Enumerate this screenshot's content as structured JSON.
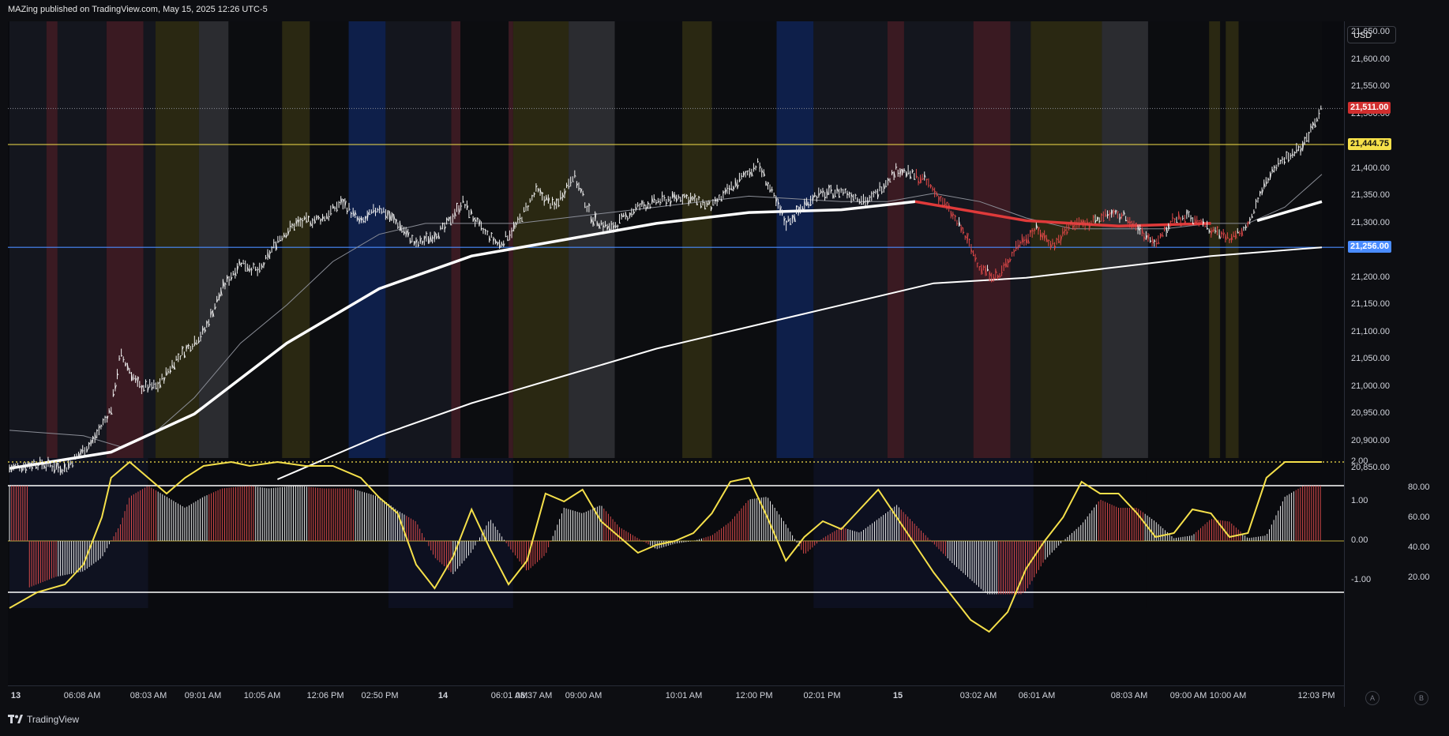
{
  "header": {
    "title": "MAZing published on TradingView.com, May 15, 2025 12:26 UTC-5"
  },
  "currency": "USD",
  "price_axis": {
    "ticks": [
      "21,650.00",
      "21,600.00",
      "21,550.00",
      "21,500.00",
      "21,400.00",
      "21,350.00",
      "21,300.00",
      "21,200.00",
      "21,150.00",
      "21,100.00",
      "21,050.00",
      "21,000.00",
      "20,950.00",
      "20,900.00",
      "20,850.00"
    ],
    "tick_values": [
      21650,
      21600,
      21550,
      21500,
      21400,
      21350,
      21300,
      21200,
      21150,
      21100,
      21050,
      21000,
      20950,
      20900,
      20850
    ],
    "last_price": "21,511.00",
    "yellow_line": "21,444.75",
    "blue_line": "21,256.00",
    "last_price_value": 21511,
    "yellow_line_value": 21444.75,
    "blue_line_value": 21256
  },
  "oscillator_axis": {
    "left_ticks": [
      "2.00",
      "1.00",
      "0.00",
      "-1.00"
    ],
    "left_values": [
      2,
      1,
      0,
      -1
    ],
    "right_ticks": [
      "80.00",
      "60.00",
      "40.00",
      "20.00"
    ],
    "right_values": [
      80,
      60,
      40,
      20
    ]
  },
  "time_axis": [
    "13",
    "06:08 AM",
    "08:03 AM",
    "09:01 AM",
    "10:05 AM",
    "12:06 PM",
    "02:50 PM",
    "14",
    "06:01 AM",
    "08:37 AM",
    "09:00 AM",
    "10:01 AM",
    "12:00 PM",
    "02:01 PM",
    "15",
    "03:02 AM",
    "06:01 AM",
    "08:03 AM",
    "09:00 AM",
    "10:00 AM",
    "12:03 PM"
  ],
  "footer": {
    "brand": "TradingView",
    "btn_a": "A",
    "btn_b": "B"
  },
  "colors": {
    "yellow": "#f5e04a",
    "blue": "#4a8cff",
    "red_tag": "#d12e2e",
    "ma_red": "#e03a3a",
    "session_red": "#3a1a22",
    "session_olive": "#2a2812",
    "session_grey": "#2b2c30",
    "session_blue": "#0e1f4a",
    "session_dark": "#14161e"
  },
  "chart_data": {
    "type": "line",
    "price_range": [
      20830,
      21700
    ],
    "price_series_anchor_points": [
      [
        0,
        20850
      ],
      [
        30,
        20860
      ],
      [
        60,
        20850
      ],
      [
        90,
        20900
      ],
      [
        110,
        20960
      ],
      [
        120,
        21060
      ],
      [
        140,
        21000
      ],
      [
        160,
        21000
      ],
      [
        180,
        21050
      ],
      [
        210,
        21100
      ],
      [
        230,
        21180
      ],
      [
        250,
        21230
      ],
      [
        270,
        21210
      ],
      [
        290,
        21270
      ],
      [
        310,
        21300
      ],
      [
        340,
        21310
      ],
      [
        360,
        21340
      ],
      [
        380,
        21300
      ],
      [
        400,
        21330
      ],
      [
        420,
        21300
      ],
      [
        440,
        21260
      ],
      [
        470,
        21290
      ],
      [
        490,
        21340
      ],
      [
        510,
        21290
      ],
      [
        530,
        21260
      ],
      [
        550,
        21300
      ],
      [
        570,
        21360
      ],
      [
        590,
        21330
      ],
      [
        610,
        21390
      ],
      [
        630,
        21310
      ],
      [
        650,
        21290
      ],
      [
        680,
        21330
      ],
      [
        700,
        21340
      ],
      [
        730,
        21350
      ],
      [
        760,
        21330
      ],
      [
        790,
        21380
      ],
      [
        810,
        21410
      ],
      [
        840,
        21300
      ],
      [
        870,
        21350
      ],
      [
        900,
        21360
      ],
      [
        930,
        21340
      ],
      [
        960,
        21400
      ],
      [
        990,
        21380
      ],
      [
        1010,
        21340
      ],
      [
        1030,
        21290
      ],
      [
        1050,
        21220
      ],
      [
        1070,
        21200
      ],
      [
        1090,
        21260
      ],
      [
        1110,
        21290
      ],
      [
        1130,
        21260
      ],
      [
        1150,
        21300
      ],
      [
        1170,
        21300
      ],
      [
        1190,
        21320
      ],
      [
        1210,
        21310
      ],
      [
        1240,
        21260
      ],
      [
        1260,
        21310
      ],
      [
        1280,
        21310
      ],
      [
        1300,
        21290
      ],
      [
        1320,
        21270
      ],
      [
        1340,
        21300
      ],
      [
        1360,
        21380
      ],
      [
        1380,
        21420
      ],
      [
        1400,
        21440
      ],
      [
        1420,
        21511
      ]
    ],
    "red_segment_range_x": [
      980,
      1340
    ],
    "ma_fast_points": [
      [
        0,
        20850
      ],
      [
        110,
        20880
      ],
      [
        200,
        20950
      ],
      [
        300,
        21080
      ],
      [
        400,
        21180
      ],
      [
        500,
        21240
      ],
      [
        600,
        21270
      ],
      [
        700,
        21300
      ],
      [
        800,
        21320
      ],
      [
        900,
        21325
      ],
      [
        980,
        21340
      ],
      [
        1100,
        21305
      ],
      [
        1200,
        21295
      ],
      [
        1300,
        21300
      ],
      [
        1350,
        21305
      ],
      [
        1420,
        21340
      ]
    ],
    "ma_slow_points": [
      [
        290,
        20830
      ],
      [
        400,
        20910
      ],
      [
        500,
        20970
      ],
      [
        600,
        21020
      ],
      [
        700,
        21070
      ],
      [
        800,
        21110
      ],
      [
        900,
        21150
      ],
      [
        1000,
        21190
      ],
      [
        1100,
        21200
      ],
      [
        1200,
        21220
      ],
      [
        1300,
        21240
      ],
      [
        1420,
        21256
      ]
    ],
    "ma_grey_points": [
      [
        0,
        20920
      ],
      [
        80,
        20910
      ],
      [
        120,
        20890
      ],
      [
        160,
        20920
      ],
      [
        200,
        20980
      ],
      [
        250,
        21080
      ],
      [
        300,
        21150
      ],
      [
        350,
        21230
      ],
      [
        400,
        21280
      ],
      [
        450,
        21300
      ],
      [
        500,
        21300
      ],
      [
        550,
        21300
      ],
      [
        600,
        21310
      ],
      [
        650,
        21320
      ],
      [
        700,
        21330
      ],
      [
        750,
        21340
      ],
      [
        800,
        21350
      ],
      [
        850,
        21345
      ],
      [
        900,
        21340
      ],
      [
        950,
        21340
      ],
      [
        1000,
        21355
      ],
      [
        1050,
        21340
      ],
      [
        1100,
        21310
      ],
      [
        1150,
        21290
      ],
      [
        1200,
        21290
      ],
      [
        1250,
        21290
      ],
      [
        1300,
        21300
      ],
      [
        1340,
        21300
      ],
      [
        1380,
        21330
      ],
      [
        1420,
        21390
      ]
    ],
    "oscillator_yellow_points": [
      [
        0,
        -1.7
      ],
      [
        30,
        -1.3
      ],
      [
        60,
        -1.1
      ],
      [
        80,
        -0.6
      ],
      [
        100,
        0.6
      ],
      [
        110,
        1.6
      ],
      [
        130,
        2.0
      ],
      [
        150,
        1.6
      ],
      [
        170,
        1.2
      ],
      [
        190,
        1.6
      ],
      [
        210,
        1.9
      ],
      [
        240,
        2.0
      ],
      [
        260,
        1.9
      ],
      [
        290,
        2.0
      ],
      [
        320,
        1.9
      ],
      [
        350,
        1.9
      ],
      [
        380,
        1.6
      ],
      [
        400,
        1.1
      ],
      [
        420,
        0.7
      ],
      [
        440,
        -0.6
      ],
      [
        460,
        -1.2
      ],
      [
        480,
        -0.4
      ],
      [
        500,
        0.8
      ],
      [
        520,
        -0.2
      ],
      [
        540,
        -1.1
      ],
      [
        560,
        -0.5
      ],
      [
        580,
        1.2
      ],
      [
        600,
        1.0
      ],
      [
        620,
        1.3
      ],
      [
        640,
        0.5
      ],
      [
        660,
        0.1
      ],
      [
        680,
        -0.3
      ],
      [
        700,
        -0.1
      ],
      [
        720,
        0.0
      ],
      [
        740,
        0.2
      ],
      [
        760,
        0.7
      ],
      [
        780,
        1.5
      ],
      [
        800,
        1.6
      ],
      [
        820,
        0.6
      ],
      [
        840,
        -0.5
      ],
      [
        860,
        0.1
      ],
      [
        880,
        0.5
      ],
      [
        900,
        0.3
      ],
      [
        920,
        0.8
      ],
      [
        940,
        1.3
      ],
      [
        960,
        0.6
      ],
      [
        980,
        -0.1
      ],
      [
        1000,
        -0.8
      ],
      [
        1020,
        -1.4
      ],
      [
        1040,
        -2.0
      ],
      [
        1060,
        -2.3
      ],
      [
        1080,
        -1.8
      ],
      [
        1100,
        -0.7
      ],
      [
        1120,
        0.0
      ],
      [
        1140,
        0.6
      ],
      [
        1160,
        1.5
      ],
      [
        1180,
        1.2
      ],
      [
        1200,
        1.2
      ],
      [
        1220,
        0.7
      ],
      [
        1240,
        0.1
      ],
      [
        1260,
        0.2
      ],
      [
        1280,
        0.8
      ],
      [
        1300,
        0.7
      ],
      [
        1320,
        0.1
      ],
      [
        1340,
        0.2
      ],
      [
        1360,
        1.6
      ],
      [
        1380,
        2.0
      ],
      [
        1420,
        2.0
      ]
    ],
    "oscillator_range": [
      -1.7,
      2.1
    ],
    "oscillator_ref_lines": [
      2.0,
      1.4,
      -1.3
    ]
  }
}
